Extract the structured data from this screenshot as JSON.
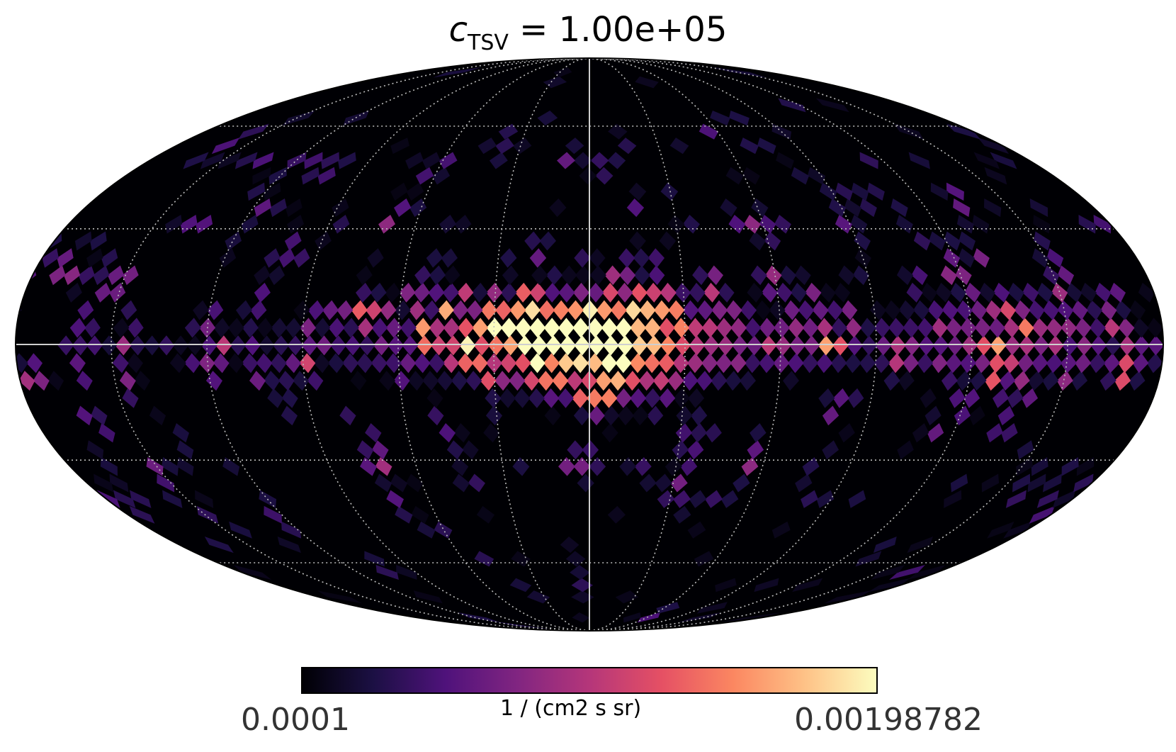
{
  "chart_data": {
    "type": "heatmap",
    "projection": "mollweide",
    "title_symbol": "c",
    "title_subscript": "TSV",
    "title_value": " = 1.00e+05",
    "colormap": "magma",
    "colorbar": {
      "min_label": "0.0001",
      "max_label": "0.00198782",
      "min": 0.0001,
      "max": 0.00198782,
      "unit_label": "1 / (cm2 s sr)",
      "orientation": "horizontal",
      "placement": "bottom"
    },
    "graticule": {
      "longitude_step_deg": 30,
      "latitude_step_deg": 30,
      "style": "dotted"
    },
    "axes_lines": [
      "equator",
      "central meridian"
    ],
    "grid_note": "HEALPix-style map; peak intensity at galactic center (lon 0, lat 0), bright band along the equator extending to about ±75° longitude, patchy high-latitude structure"
  }
}
